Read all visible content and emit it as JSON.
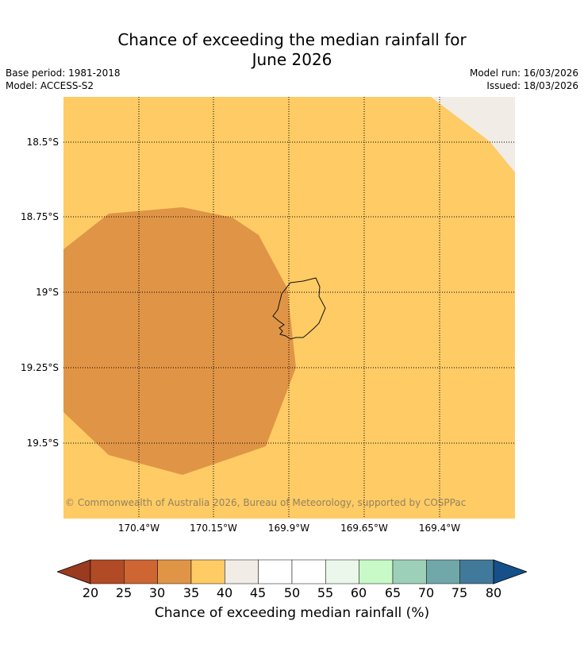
{
  "header": {
    "title_line1": "Chance of exceeding the median rainfall for",
    "title_line2": "June 2026",
    "base_period": "Base period: 1981-2018",
    "model": "Model: ACCESS-S2",
    "model_run": "Model run: 16/03/2026",
    "issued": "Issued: 18/03/2026"
  },
  "map": {
    "lat_labels": [
      "18.5°S",
      "18.75°S",
      "19°S",
      "19.25°S",
      "19.5°S"
    ],
    "lon_labels": [
      "170.4°W",
      "170.15°W",
      "169.9°W",
      "169.65°W",
      "169.4°W"
    ],
    "copyright": "© Commonwealth of Australia 2026, Bureau of Meteorology, supported by COSPPac",
    "region_colors": {
      "background_35_40": "#FECB65",
      "band_30_35": "#E09546",
      "band_40_45": "#F1ECE6"
    }
  },
  "colorbar": {
    "label": "Chance of exceeding median rainfall (%)",
    "ticks": [
      "20",
      "25",
      "30",
      "35",
      "40",
      "45",
      "50",
      "55",
      "60",
      "65",
      "70",
      "75",
      "80"
    ],
    "under_color": "#9A3A1F",
    "over_color": "#15508A",
    "colors": [
      "#B14B25",
      "#CD6633",
      "#E09546",
      "#FECB65",
      "#F1ECE6",
      "#FFFFFF",
      "#FFFFFF",
      "#EAF7EA",
      "#C8FAC8",
      "#9DD0B8",
      "#70A7A8",
      "#41799A"
    ]
  }
}
